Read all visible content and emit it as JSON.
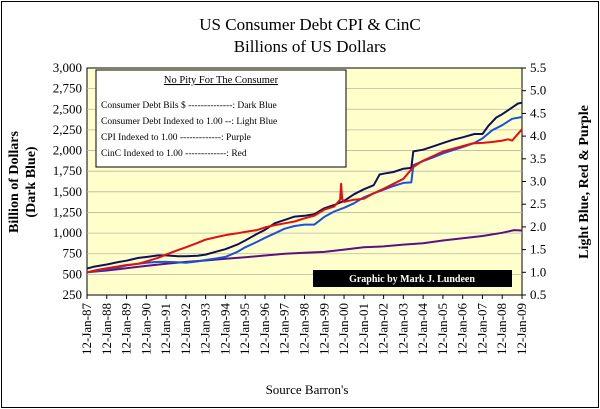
{
  "chart_data": {
    "type": "line",
    "title": "US Consumer Debt CPI & CinC",
    "subtitle": "Billions of US Dollars",
    "ylabel_left_line1": "Billion of Dollars",
    "ylabel_left_line2": "(Dark Blue)",
    "ylabel_right": "Light Blue,  Red & Purple",
    "source": "Source Barron's",
    "credit": "Graphic by Mark J. Lundeen",
    "y_left": {
      "min": 250,
      "max": 3000,
      "ticks": [
        "250",
        "500",
        "750",
        "1,000",
        "1,250",
        "1,500",
        "1,750",
        "2,000",
        "2,250",
        "2,500",
        "2,750",
        "3,000"
      ]
    },
    "y_right": {
      "min": 0.5,
      "max": 5.5,
      "ticks": [
        "0.5",
        "1.0",
        "1.5",
        "2.0",
        "2.5",
        "3.0",
        "3.5",
        "4.0",
        "4.5",
        "5.0",
        "5.5"
      ]
    },
    "x_range": [
      1987,
      2009
    ],
    "x_ticks": [
      {
        "label": "12-Jan-87",
        "t": 1987
      },
      {
        "label": "12-Jan-88",
        "t": 1988
      },
      {
        "label": "12-Jan-89",
        "t": 1989
      },
      {
        "label": "12-Jan-90",
        "t": 1990
      },
      {
        "label": "12-Jan-91",
        "t": 1991
      },
      {
        "label": "12-Jan-92",
        "t": 1992
      },
      {
        "label": "12-Jan-93",
        "t": 1993
      },
      {
        "label": "12-Jan-94",
        "t": 1994
      },
      {
        "label": "12-Jan-95",
        "t": 1995
      },
      {
        "label": "12-Jan-96",
        "t": 1996
      },
      {
        "label": "12-Jan-97",
        "t": 1997
      },
      {
        "label": "12-Jan-98",
        "t": 1998
      },
      {
        "label": "12-Jan-99",
        "t": 1999
      },
      {
        "label": "12-Jan-00",
        "t": 2000
      },
      {
        "label": "12-Jan-01",
        "t": 2001
      },
      {
        "label": "12-Jan-02",
        "t": 2002
      },
      {
        "label": "12-Jan-03",
        "t": 2003
      },
      {
        "label": "12-Jan-04",
        "t": 2004
      },
      {
        "label": "12-Jan-05",
        "t": 2005
      },
      {
        "label": "12-Jan-06",
        "t": 2006
      },
      {
        "label": "12-Jan-07",
        "t": 2007
      },
      {
        "label": "12-Jan-08",
        "t": 2008
      },
      {
        "label": "12-Jan-09",
        "t": 2009
      }
    ],
    "legend": {
      "title": "No Pity For The Consumer",
      "entries": [
        "Consumer Debt Bils $ --------------: Dark Blue",
        "Consumer Debt Indexed to 1.00 --: Light Blue",
        "CPI Indexed to 1.00 -------------: Purple",
        "CinC Indexed to 1.00 -------------: Red"
      ]
    },
    "series": [
      {
        "name": "Consumer Debt Bils $",
        "axis": "left",
        "color": "#10105a",
        "points": [
          [
            1987.0,
            570
          ],
          [
            1987.3,
            590
          ],
          [
            1988.0,
            620
          ],
          [
            1988.6,
            650
          ],
          [
            1989.0,
            665
          ],
          [
            1989.6,
            700
          ],
          [
            1990.0,
            710
          ],
          [
            1990.6,
            730
          ],
          [
            1991.0,
            730
          ],
          [
            1991.6,
            720
          ],
          [
            1992.0,
            720
          ],
          [
            1992.6,
            725
          ],
          [
            1993.0,
            740
          ],
          [
            1993.6,
            780
          ],
          [
            1994.0,
            805
          ],
          [
            1994.6,
            860
          ],
          [
            1995.0,
            910
          ],
          [
            1995.6,
            990
          ],
          [
            1996.0,
            1040
          ],
          [
            1996.5,
            1120
          ],
          [
            1997.0,
            1160
          ],
          [
            1997.5,
            1200
          ],
          [
            1998.0,
            1210
          ],
          [
            1998.5,
            1230
          ],
          [
            1999.0,
            1300
          ],
          [
            1999.5,
            1340
          ],
          [
            2000.0,
            1390
          ],
          [
            2000.5,
            1470
          ],
          [
            2001.0,
            1530
          ],
          [
            2001.5,
            1580
          ],
          [
            2001.8,
            1710
          ],
          [
            2002.0,
            1720
          ],
          [
            2002.5,
            1740
          ],
          [
            2003.0,
            1780
          ],
          [
            2003.4,
            1790
          ],
          [
            2003.5,
            1990
          ],
          [
            2004.0,
            2010
          ],
          [
            2004.5,
            2050
          ],
          [
            2005.0,
            2090
          ],
          [
            2005.5,
            2130
          ],
          [
            2006.0,
            2160
          ],
          [
            2006.6,
            2200
          ],
          [
            2007.0,
            2200
          ],
          [
            2007.3,
            2300
          ],
          [
            2007.7,
            2400
          ],
          [
            2008.0,
            2440
          ],
          [
            2008.5,
            2520
          ],
          [
            2008.8,
            2570
          ],
          [
            2009.0,
            2580
          ]
        ]
      },
      {
        "name": "Consumer Debt Indexed to 1.00",
        "axis": "right",
        "color": "#1a4fe0",
        "points": [
          [
            1987.0,
            1.0
          ],
          [
            1987.5,
            1.03
          ],
          [
            1988.0,
            1.07
          ],
          [
            1988.6,
            1.11
          ],
          [
            1989.0,
            1.15
          ],
          [
            1989.6,
            1.19
          ],
          [
            1990.0,
            1.21
          ],
          [
            1990.6,
            1.23
          ],
          [
            1991.0,
            1.23
          ],
          [
            1991.6,
            1.22
          ],
          [
            1992.0,
            1.21
          ],
          [
            1992.6,
            1.24
          ],
          [
            1993.0,
            1.27
          ],
          [
            1993.6,
            1.31
          ],
          [
            1994.0,
            1.34
          ],
          [
            1994.6,
            1.45
          ],
          [
            1995.0,
            1.55
          ],
          [
            1995.6,
            1.67
          ],
          [
            1996.0,
            1.76
          ],
          [
            1996.5,
            1.86
          ],
          [
            1997.0,
            1.96
          ],
          [
            1997.5,
            2.02
          ],
          [
            1998.0,
            2.05
          ],
          [
            1998.5,
            2.05
          ],
          [
            1999.0,
            2.22
          ],
          [
            1999.5,
            2.34
          ],
          [
            2000.0,
            2.42
          ],
          [
            2000.5,
            2.52
          ],
          [
            2001.0,
            2.65
          ],
          [
            2001.5,
            2.74
          ],
          [
            2002.0,
            2.82
          ],
          [
            2002.5,
            2.9
          ],
          [
            2003.0,
            2.97
          ],
          [
            2003.4,
            2.98
          ],
          [
            2003.5,
            3.36
          ],
          [
            2004.0,
            3.45
          ],
          [
            2004.5,
            3.53
          ],
          [
            2005.0,
            3.62
          ],
          [
            2005.5,
            3.69
          ],
          [
            2006.0,
            3.76
          ],
          [
            2006.6,
            3.85
          ],
          [
            2007.0,
            3.95
          ],
          [
            2007.5,
            4.13
          ],
          [
            2008.0,
            4.24
          ],
          [
            2008.5,
            4.38
          ],
          [
            2009.0,
            4.42
          ]
        ]
      },
      {
        "name": "CPI Indexed to 1.00",
        "axis": "right",
        "color": "#5c1180",
        "points": [
          [
            1987.0,
            1.0
          ],
          [
            1988.0,
            1.04
          ],
          [
            1989.0,
            1.09
          ],
          [
            1990.0,
            1.14
          ],
          [
            1991.0,
            1.19
          ],
          [
            1992.0,
            1.23
          ],
          [
            1993.0,
            1.26
          ],
          [
            1994.0,
            1.3
          ],
          [
            1995.0,
            1.33
          ],
          [
            1996.0,
            1.37
          ],
          [
            1997.0,
            1.41
          ],
          [
            1998.0,
            1.43
          ],
          [
            1999.0,
            1.45
          ],
          [
            2000.0,
            1.5
          ],
          [
            2001.0,
            1.55
          ],
          [
            2002.0,
            1.57
          ],
          [
            2003.0,
            1.61
          ],
          [
            2004.0,
            1.64
          ],
          [
            2005.0,
            1.7
          ],
          [
            2006.0,
            1.75
          ],
          [
            2007.0,
            1.8
          ],
          [
            2008.0,
            1.87
          ],
          [
            2008.6,
            1.93
          ],
          [
            2009.0,
            1.92
          ]
        ]
      },
      {
        "name": "CinC Indexed to 1.00",
        "axis": "right",
        "color": "#e01010",
        "points": [
          [
            1987.0,
            1.0
          ],
          [
            1987.5,
            1.05
          ],
          [
            1988.0,
            1.09
          ],
          [
            1988.6,
            1.13
          ],
          [
            1989.0,
            1.16
          ],
          [
            1989.6,
            1.19
          ],
          [
            1990.0,
            1.24
          ],
          [
            1990.6,
            1.32
          ],
          [
            1991.0,
            1.39
          ],
          [
            1991.6,
            1.49
          ],
          [
            1992.0,
            1.55
          ],
          [
            1992.6,
            1.65
          ],
          [
            1993.0,
            1.72
          ],
          [
            1993.6,
            1.78
          ],
          [
            1994.0,
            1.82
          ],
          [
            1994.6,
            1.86
          ],
          [
            1995.0,
            1.89
          ],
          [
            1995.6,
            1.93
          ],
          [
            1996.0,
            1.99
          ],
          [
            1996.5,
            2.04
          ],
          [
            1997.0,
            2.08
          ],
          [
            1997.5,
            2.12
          ],
          [
            1998.0,
            2.19
          ],
          [
            1998.5,
            2.25
          ],
          [
            1999.0,
            2.38
          ],
          [
            1999.5,
            2.45
          ],
          [
            1999.8,
            2.6
          ],
          [
            1999.85,
            2.95
          ],
          [
            1999.9,
            2.62
          ],
          [
            2000.0,
            2.55
          ],
          [
            2000.5,
            2.6
          ],
          [
            2001.0,
            2.62
          ],
          [
            2001.5,
            2.74
          ],
          [
            2002.0,
            2.84
          ],
          [
            2002.5,
            2.95
          ],
          [
            2003.0,
            3.06
          ],
          [
            2003.5,
            3.32
          ],
          [
            2004.0,
            3.46
          ],
          [
            2004.5,
            3.56
          ],
          [
            2005.0,
            3.66
          ],
          [
            2005.5,
            3.72
          ],
          [
            2006.0,
            3.78
          ],
          [
            2006.5,
            3.84
          ],
          [
            2007.0,
            3.85
          ],
          [
            2007.5,
            3.87
          ],
          [
            2008.0,
            3.9
          ],
          [
            2008.3,
            3.93
          ],
          [
            2008.5,
            3.9
          ],
          [
            2008.8,
            4.05
          ],
          [
            2009.0,
            4.15
          ]
        ]
      }
    ]
  }
}
